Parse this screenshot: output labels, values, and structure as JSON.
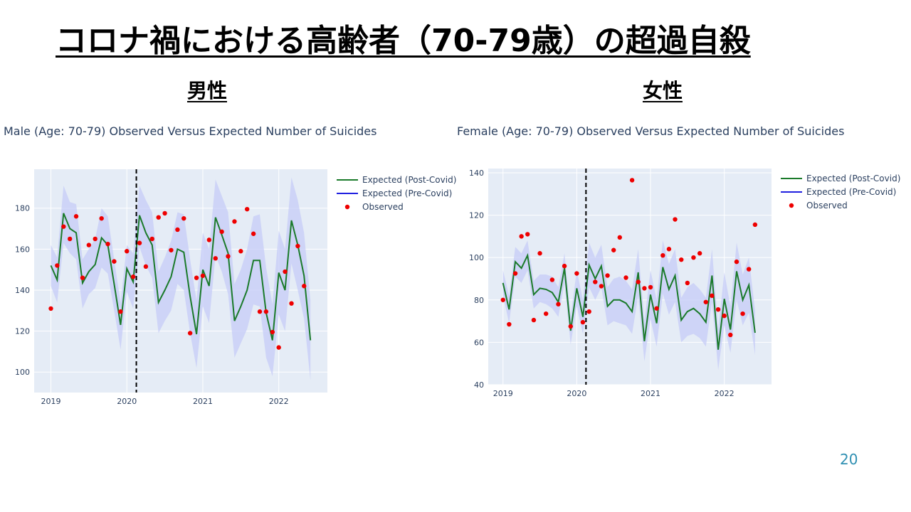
{
  "slide": {
    "title": "コロナ禍における高齢者（70-79歳）の超過自殺",
    "page_number": "20",
    "male_label": "男性",
    "female_label": "女性"
  },
  "colors": {
    "plot_bg": "#e5ecf6",
    "band": "#c6ccf7",
    "expected_post": "#1a7a2a",
    "expected_pre": "#1f1fe0",
    "observed": "#ee0000",
    "grid": "#ffffff",
    "vline": "#000000"
  },
  "chart_data": [
    {
      "type": "line",
      "title": "Male (Age: 70-79) Observed Versus Expected Number of Suicides",
      "legend": [
        "Expected (Post-Covid)",
        "Expected (Pre-Covid)",
        "Observed"
      ],
      "legend_position": "top-right",
      "x_ticks": [
        "2019",
        "2020",
        "2021",
        "2022"
      ],
      "y_ticks": [
        100,
        120,
        140,
        160,
        180
      ],
      "xlim": [
        2018.78,
        2022.64
      ],
      "ylim": [
        90,
        199
      ],
      "vline_x": 2020.125,
      "x": [
        2019.0,
        2019.083,
        2019.167,
        2019.25,
        2019.333,
        2019.417,
        2019.5,
        2019.583,
        2019.667,
        2019.75,
        2019.833,
        2019.917,
        2020.0,
        2020.083,
        2020.167,
        2020.25,
        2020.333,
        2020.417,
        2020.5,
        2020.583,
        2020.667,
        2020.75,
        2020.833,
        2020.917,
        2021.0,
        2021.083,
        2021.167,
        2021.25,
        2021.333,
        2021.417,
        2021.5,
        2021.583,
        2021.667,
        2021.75,
        2021.833,
        2021.917,
        2022.0,
        2022.083,
        2022.167,
        2022.25,
        2022.333,
        2022.417
      ],
      "expected": [
        152,
        145,
        177.5,
        170,
        168,
        143.5,
        149,
        152.5,
        165.5,
        162,
        143,
        123,
        150.5,
        144,
        176.5,
        168,
        162,
        134,
        140,
        146.5,
        160,
        158.5,
        137,
        118.5,
        150,
        142,
        175.5,
        167,
        158,
        125,
        132,
        140,
        154.5,
        154.5,
        129,
        115.5,
        148.5,
        140,
        174,
        162,
        147,
        115.5
      ],
      "band_upper": [
        162,
        156,
        191,
        183,
        182,
        155,
        160,
        165,
        180,
        176,
        155,
        134,
        162,
        158,
        191,
        184,
        178,
        149,
        156,
        164,
        178,
        177,
        155,
        135,
        168,
        160,
        194,
        186,
        178,
        143,
        150,
        160,
        176,
        177,
        151,
        133,
        169,
        160,
        195,
        184,
        168,
        135
      ],
      "band_lower": [
        142,
        134,
        163,
        158,
        155,
        131,
        138,
        141,
        151,
        148,
        130,
        111,
        139,
        131,
        161,
        152,
        146,
        119,
        125,
        130,
        143,
        140,
        119,
        102,
        132,
        124,
        157,
        149,
        138,
        107,
        114,
        121,
        133,
        132,
        107,
        98,
        128,
        120,
        153,
        140,
        126,
        96
      ],
      "observed_x": [
        2019.0,
        2019.083,
        2019.167,
        2019.25,
        2019.333,
        2019.417,
        2019.5,
        2019.583,
        2019.667,
        2019.75,
        2019.833,
        2019.917,
        2020.0,
        2020.083,
        2020.167,
        2020.25,
        2020.333,
        2020.417,
        2020.5,
        2020.583,
        2020.667,
        2020.75,
        2020.833,
        2020.917,
        2021.0,
        2021.083,
        2021.167,
        2021.25,
        2021.333,
        2021.417,
        2021.5,
        2021.583,
        2021.667,
        2021.75,
        2021.833,
        2021.917,
        2022.0,
        2022.083,
        2022.167,
        2022.25,
        2022.333,
        2022.417
      ],
      "observed": [
        131,
        152,
        171,
        165,
        176,
        146,
        162,
        165,
        175,
        162.5,
        154,
        129.5,
        159,
        146.5,
        163,
        151.5,
        165,
        175.5,
        177.5,
        159.5,
        169.5,
        175,
        119,
        146,
        147,
        164.5,
        155.5,
        168.5,
        156.5,
        173.5,
        159,
        179.5,
        167.5,
        129.5,
        129.5,
        119.5,
        112,
        149,
        133.5,
        161.5,
        142,
        null
      ]
    },
    {
      "type": "line",
      "title": "Female (Age: 70-79) Observed Versus Expected Number of Suicides",
      "legend": [
        "Expected (Post-Covid)",
        "Expected (Pre-Covid)",
        "Observed"
      ],
      "legend_position": "top-right",
      "x_ticks": [
        "2019",
        "2020",
        "2021",
        "2022"
      ],
      "y_ticks": [
        40,
        60,
        80,
        100,
        120,
        140
      ],
      "xlim": [
        2018.8,
        2022.64
      ],
      "ylim": [
        40,
        142
      ],
      "vline_x": 2020.125,
      "x": [
        2019.0,
        2019.083,
        2019.167,
        2019.25,
        2019.333,
        2019.417,
        2019.5,
        2019.583,
        2019.667,
        2019.75,
        2019.833,
        2019.917,
        2020.0,
        2020.083,
        2020.167,
        2020.25,
        2020.333,
        2020.417,
        2020.5,
        2020.583,
        2020.667,
        2020.75,
        2020.833,
        2020.917,
        2021.0,
        2021.083,
        2021.167,
        2021.25,
        2021.333,
        2021.417,
        2021.5,
        2021.583,
        2021.667,
        2021.75,
        2021.833,
        2021.917,
        2022.0,
        2022.083,
        2022.167,
        2022.25,
        2022.333,
        2022.417
      ],
      "expected": [
        88,
        75.5,
        98,
        95,
        101,
        82.5,
        85.5,
        85,
        83.5,
        79,
        95,
        65.5,
        85.5,
        72,
        96.5,
        90,
        96,
        77,
        80,
        80,
        78.5,
        74.5,
        93,
        60.5,
        82.5,
        69,
        95.5,
        85,
        91.5,
        70.5,
        74.5,
        76,
        73.5,
        69.5,
        91.5,
        56.5,
        80.5,
        66,
        93.5,
        80,
        87,
        64.5
      ],
      "band_upper": [
        94,
        82,
        105,
        102,
        108,
        89,
        92,
        92,
        91,
        86,
        102,
        72,
        94,
        80,
        107,
        100,
        106,
        86,
        90,
        91,
        89,
        85,
        104,
        70,
        94,
        80,
        108,
        97,
        104,
        81,
        86,
        88,
        85,
        81,
        104,
        66,
        93,
        77,
        107,
        92,
        100,
        75
      ],
      "band_lower": [
        82,
        69,
        91,
        88,
        94,
        76,
        79,
        78,
        76,
        72,
        88,
        59,
        77,
        64,
        86,
        80,
        86,
        68,
        70,
        69,
        68,
        64,
        82,
        51,
        71,
        58,
        83,
        73,
        79,
        60,
        63,
        64,
        62,
        58,
        79,
        47,
        68,
        55,
        80,
        68,
        74,
        54
      ],
      "observed_x": [
        2019.0,
        2019.083,
        2019.167,
        2019.25,
        2019.333,
        2019.417,
        2019.5,
        2019.583,
        2019.667,
        2019.75,
        2019.833,
        2019.917,
        2020.0,
        2020.083,
        2020.167,
        2020.25,
        2020.333,
        2020.417,
        2020.5,
        2020.583,
        2020.667,
        2020.75,
        2020.833,
        2020.917,
        2021.0,
        2021.083,
        2021.167,
        2021.25,
        2021.333,
        2021.417,
        2021.5,
        2021.583,
        2021.667,
        2021.75,
        2021.833,
        2021.917,
        2022.0,
        2022.083,
        2022.167,
        2022.25,
        2022.333,
        2022.417
      ],
      "observed": [
        80,
        68.5,
        92.5,
        110,
        111,
        70.5,
        102,
        73.5,
        89.5,
        78,
        96,
        67.5,
        92.5,
        69.5,
        74.5,
        88.5,
        86.5,
        91.5,
        103.5,
        109.5,
        90.5,
        136.5,
        88.5,
        85.5,
        86,
        76,
        101,
        104,
        118,
        99,
        88,
        100,
        102,
        79,
        82,
        75.5,
        72.5,
        63.5,
        98,
        73.5,
        94.5,
        115.5
      ]
    }
  ]
}
